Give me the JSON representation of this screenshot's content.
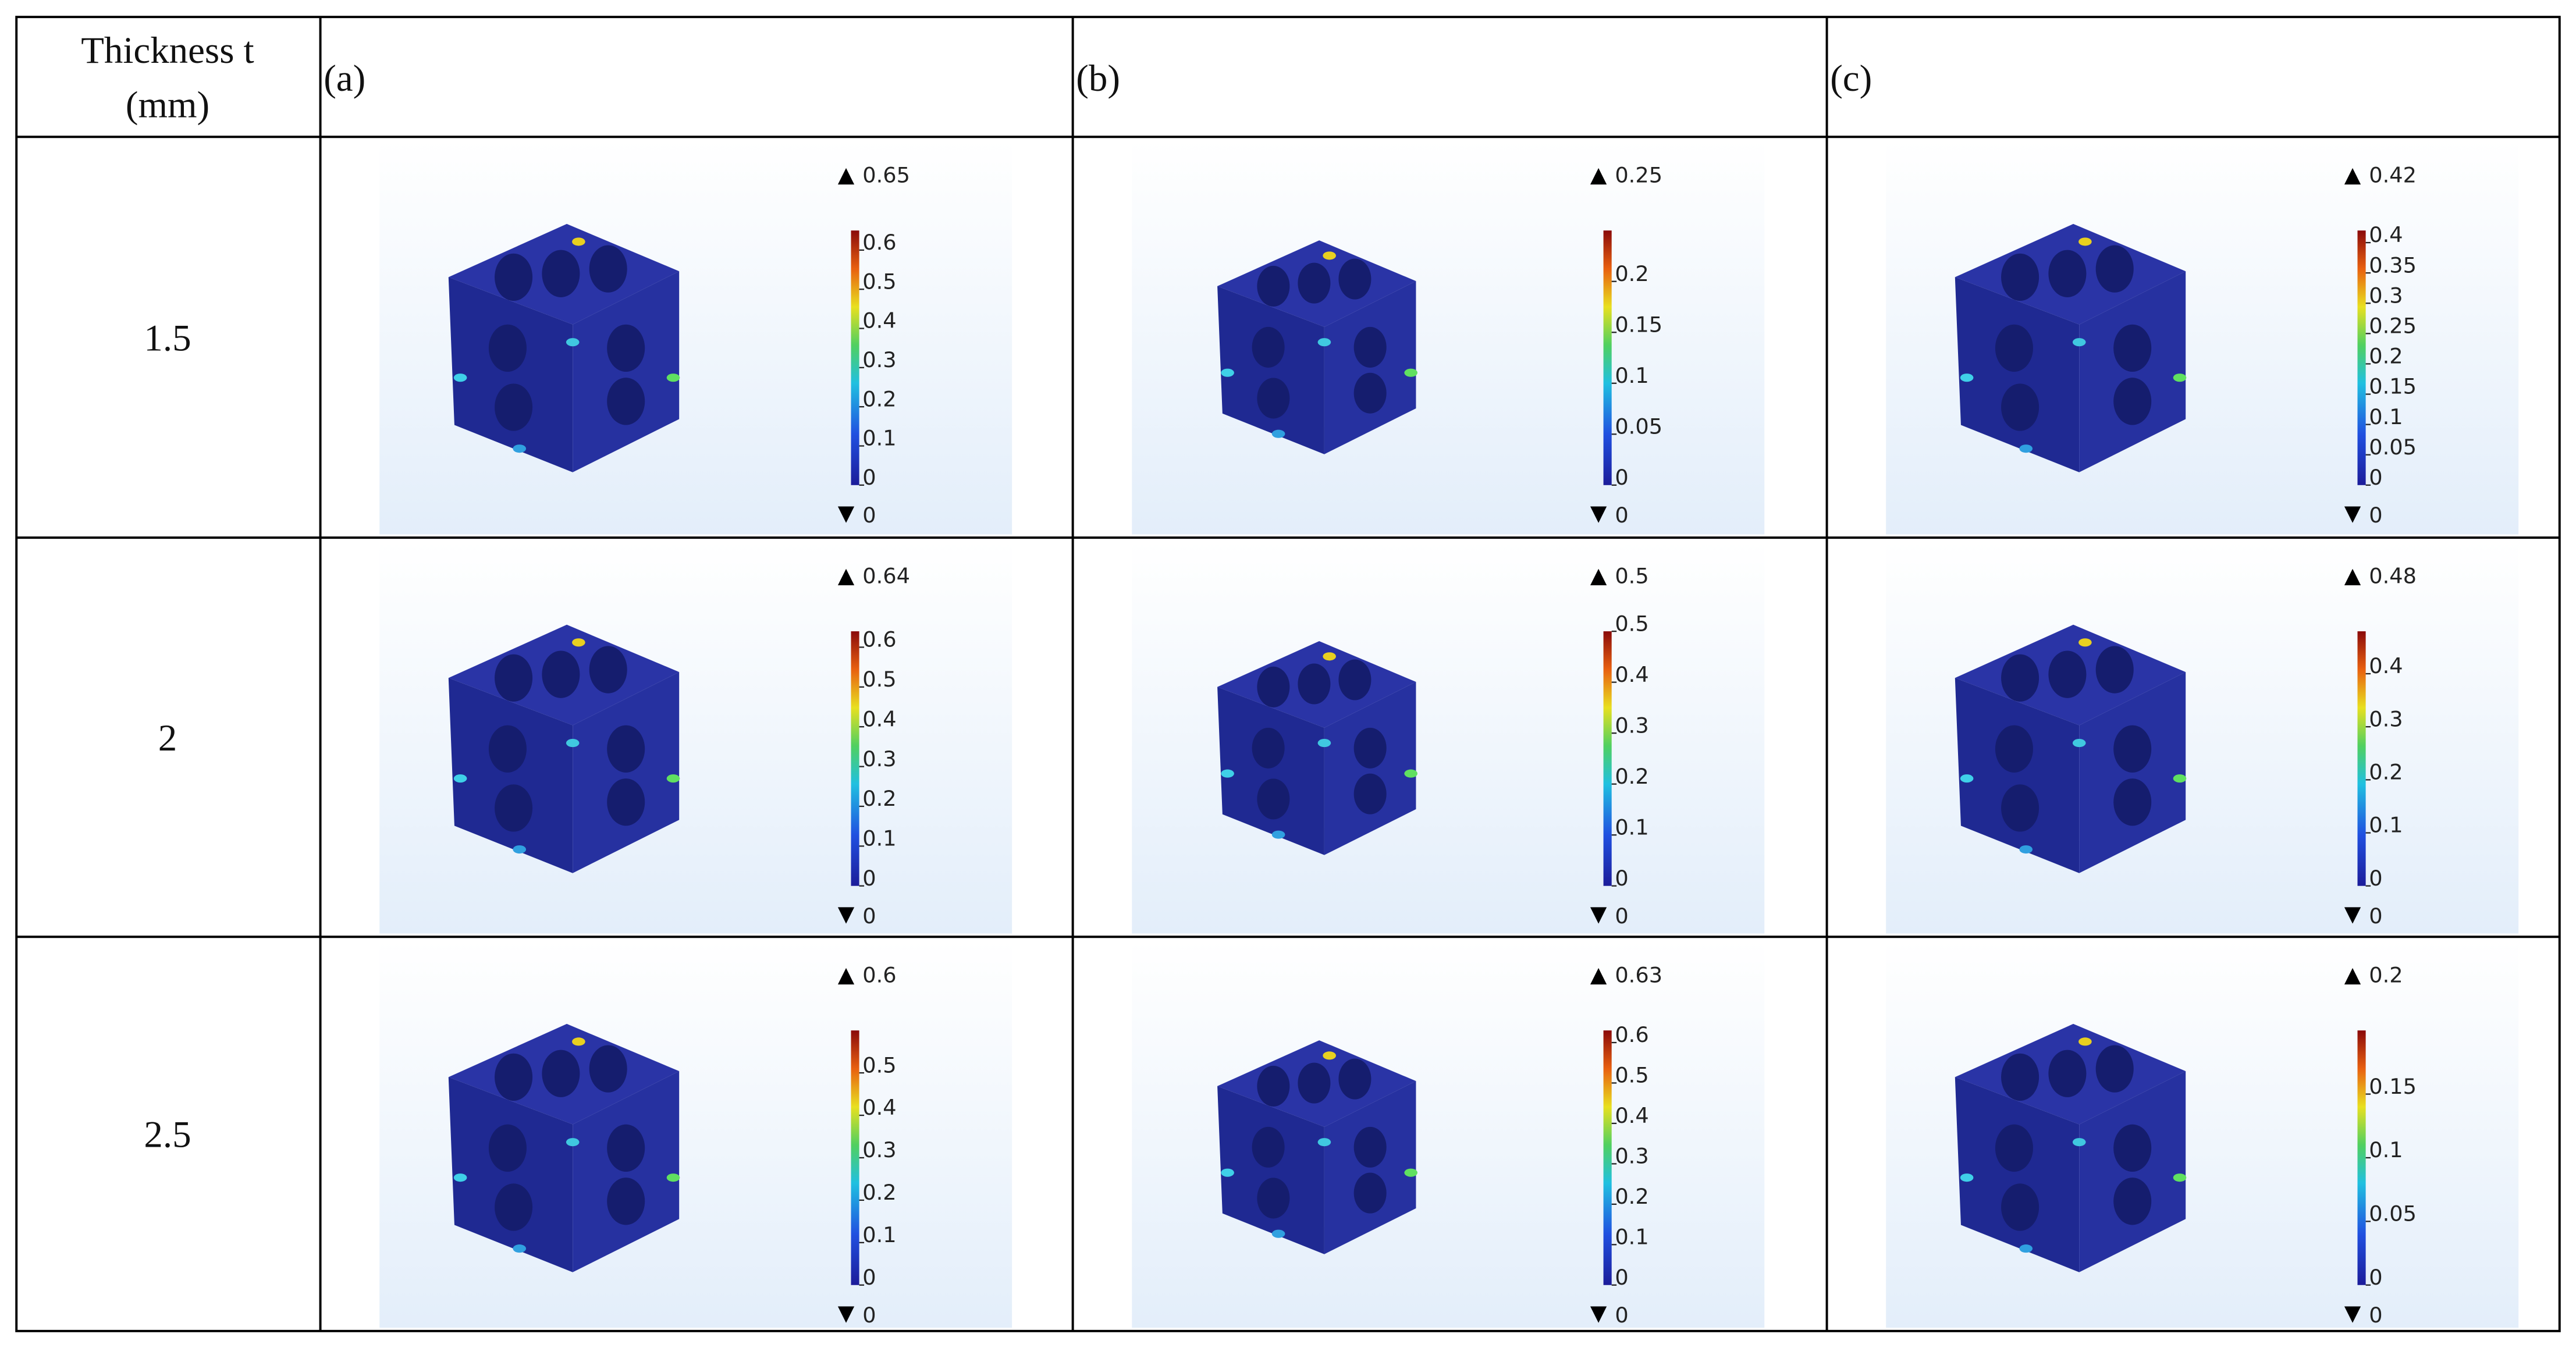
{
  "header": {
    "thickness": [
      "Thickness t",
      "(mm)"
    ],
    "columns": [
      "(a)",
      "(b)",
      "(c)"
    ]
  },
  "rows": [
    {
      "thickness": "1.5",
      "cells": [
        {
          "max": 0.65,
          "min": 0,
          "ticks": [
            0,
            0.1,
            0.2,
            0.3,
            0.4,
            0.5,
            0.6
          ]
        },
        {
          "max": 0.25,
          "min": 0,
          "ticks": [
            0,
            0.05,
            0.1,
            0.15,
            0.2
          ]
        },
        {
          "max": 0.42,
          "min": 0,
          "ticks": [
            0,
            0.05,
            0.1,
            0.15,
            0.2,
            0.25,
            0.3,
            0.35,
            0.4
          ]
        }
      ]
    },
    {
      "thickness": "2",
      "cells": [
        {
          "max": 0.64,
          "min": 0,
          "ticks": [
            0,
            0.1,
            0.2,
            0.3,
            0.4,
            0.5,
            0.6
          ]
        },
        {
          "max": 0.5,
          "min": 0,
          "ticks": [
            0,
            0.1,
            0.2,
            0.3,
            0.4,
            0.5
          ]
        },
        {
          "max": 0.48,
          "min": 0,
          "ticks": [
            0,
            0.1,
            0.2,
            0.3,
            0.4
          ]
        }
      ]
    },
    {
      "thickness": "2.5",
      "cells": [
        {
          "max": 0.6,
          "min": 0,
          "ticks": [
            0,
            0.1,
            0.2,
            0.3,
            0.4,
            0.5
          ]
        },
        {
          "max": 0.63,
          "min": 0,
          "ticks": [
            0,
            0.1,
            0.2,
            0.3,
            0.4,
            0.5,
            0.6
          ]
        },
        {
          "max": 0.2,
          "min": 0,
          "ticks": [
            0,
            0.05,
            0.1,
            0.15
          ]
        }
      ]
    }
  ]
}
